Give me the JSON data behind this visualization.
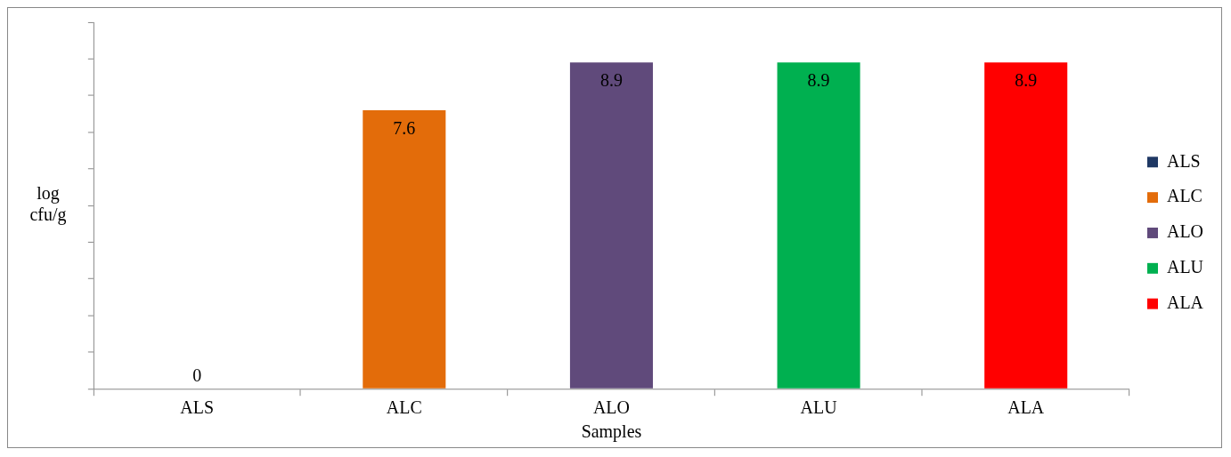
{
  "chart_data": {
    "type": "bar",
    "xlabel": "Samples",
    "ylabel": "log cfu/g",
    "categories": [
      "ALS",
      "ALC",
      "ALO",
      "ALU",
      "ALA"
    ],
    "series": [
      {
        "name": "ALS",
        "color": "#1f3864",
        "values": [
          0,
          null,
          null,
          null,
          null
        ]
      },
      {
        "name": "ALC",
        "color": "#e36c0a",
        "values": [
          null,
          7.6,
          null,
          null,
          null
        ]
      },
      {
        "name": "ALO",
        "color": "#604a7b",
        "values": [
          null,
          null,
          8.9,
          null,
          null
        ]
      },
      {
        "name": "ALU",
        "color": "#00b050",
        "values": [
          null,
          null,
          null,
          8.9,
          null
        ]
      },
      {
        "name": "ALA",
        "color": "#ff0000",
        "values": [
          null,
          null,
          null,
          null,
          8.9
        ]
      }
    ],
    "ylim": [
      0,
      10
    ],
    "yticks": [
      {
        "value": 0,
        "label": null
      },
      {
        "value": 1,
        "label": null
      },
      {
        "value": 2,
        "label": null
      },
      {
        "value": 3,
        "label": null
      },
      {
        "value": 4,
        "label": null
      },
      {
        "value": 5,
        "label": null
      },
      {
        "value": 6,
        "label": null
      },
      {
        "value": 7,
        "label": null
      },
      {
        "value": 8,
        "label": null
      },
      {
        "value": 9,
        "label": null
      },
      {
        "value": 10,
        "label": null
      }
    ],
    "tick_labels": "x",
    "grid": false,
    "legend": "right",
    "data_labels": true
  }
}
